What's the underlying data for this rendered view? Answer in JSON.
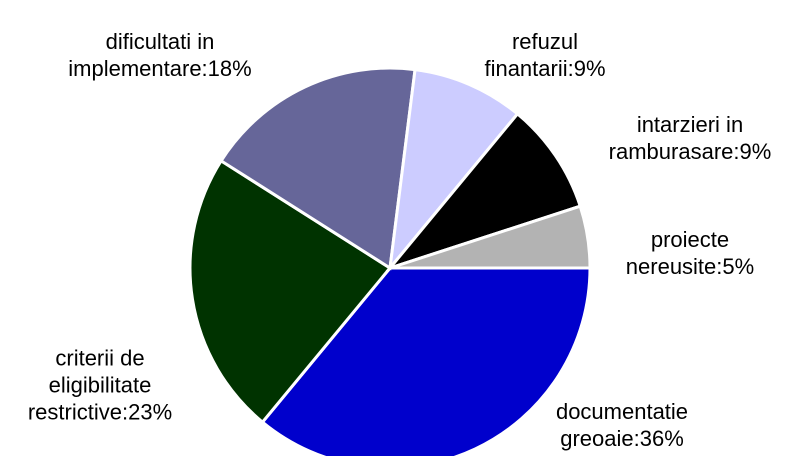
{
  "chart_data": {
    "type": "pie",
    "value_labels": [
      "documentatie greoaie:36%",
      "criterii de eligibilitate restrictive:23%",
      "dificultati in implementare:18%",
      "refuzul finantarii:9%",
      "intarzieri in ramburasare:9%",
      "proiecte nereusite:5%"
    ],
    "values": [
      36,
      23,
      18,
      9,
      9,
      5
    ],
    "colors": [
      "#0000cc",
      "#003300",
      "#666699",
      "#ccccff",
      "#000000",
      "#b3b3b3"
    ]
  }
}
